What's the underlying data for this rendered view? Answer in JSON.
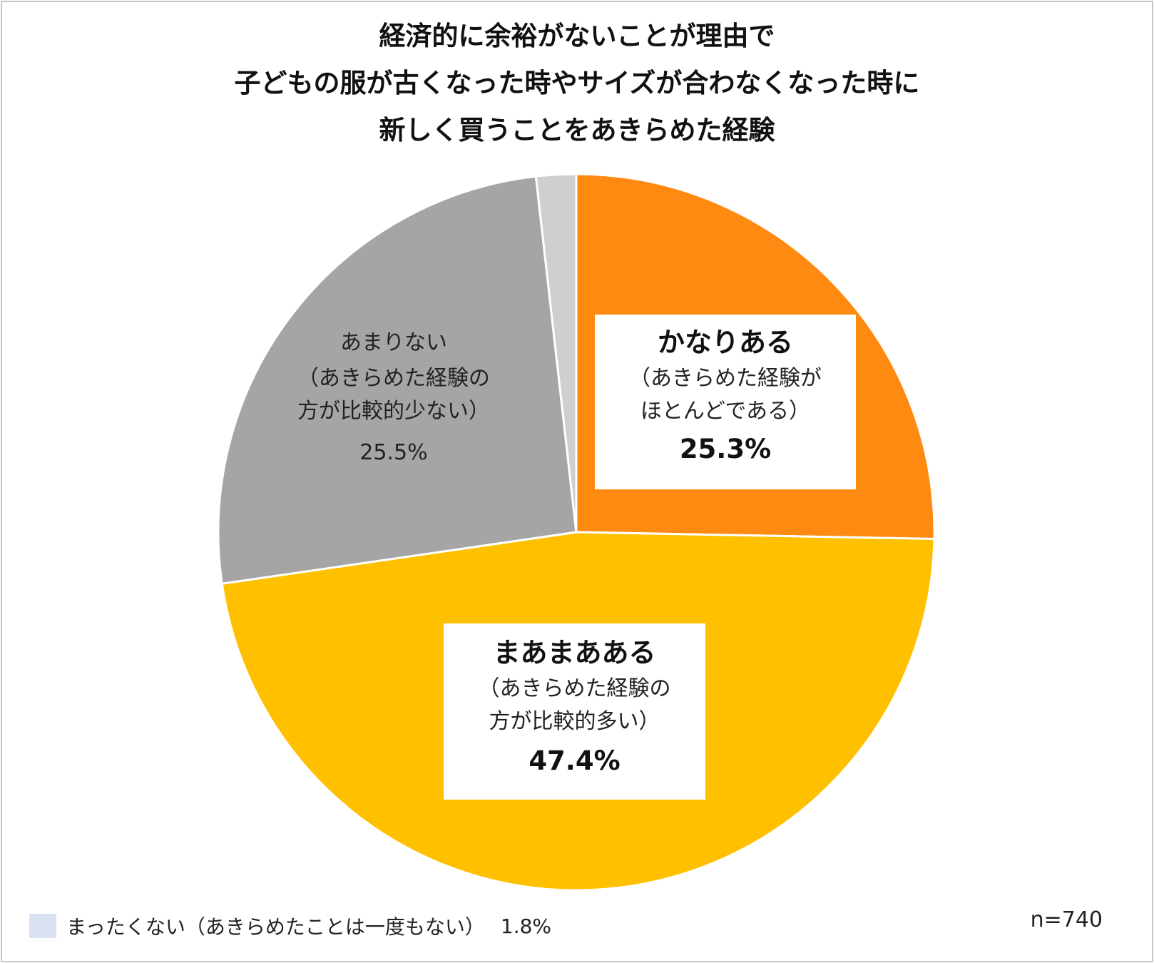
{
  "chart_data": {
    "type": "pie",
    "title": [
      "経済的に余裕がないことが理由で",
      "子どもの服が古くなった時やサイズが合わなくなった時に",
      "新しく買うことをあきらめた経験"
    ],
    "start": "12 o'clock, clockwise",
    "slices": [
      {
        "name": "かなりある",
        "note": [
          "（あきらめた経験が",
          "ほとんどである）"
        ],
        "value": 25.3,
        "label": "25.3%",
        "color": "#FF8A12"
      },
      {
        "name": "まあまあある",
        "note": [
          "（あきらめた経験の",
          "方が比較的多い）"
        ],
        "value": 47.4,
        "label": "47.4%",
        "color": "#FFC000"
      },
      {
        "name": "あまりない",
        "note": [
          "（あきらめた経験の",
          "方が比較的少ない）"
        ],
        "value": 25.5,
        "label": "25.5%",
        "color": "#A5A5A5"
      },
      {
        "name": "まったくない（あきらめたことは一度もない）",
        "value": 1.8,
        "label": "1.8%",
        "color": "#D0CECE"
      }
    ],
    "legend": {
      "placement": "bottom-left",
      "swatch_color": "#D9E1F2"
    },
    "sample_size": "n=740"
  }
}
